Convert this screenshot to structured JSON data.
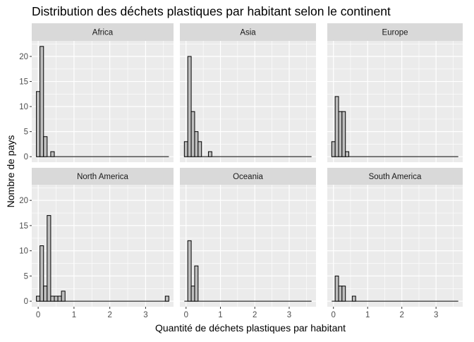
{
  "chart_data": {
    "type": "histogram",
    "title": "Distribution des déchets plastiques par habitant selon le continent",
    "xlabel": "Quantité de déchets plastiques par habitant",
    "ylabel": "Nombre de pays",
    "x_ticks": [
      0,
      1,
      2,
      3
    ],
    "y_ticks": [
      0,
      5,
      10,
      15,
      20
    ],
    "xlim": [
      -0.18,
      3.78
    ],
    "ylim": [
      -1.1,
      23.1
    ],
    "bin_width": 0.1,
    "grid": true,
    "colors": {
      "panel_bg": "#ebebeb",
      "strip_bg": "#d9d9d9",
      "bar_fill": "#bebebe",
      "bar_stroke": "#000000",
      "grid_major": "#ffffff",
      "text": "#000000",
      "axis_text": "#4d4d4d"
    },
    "panels": [
      {
        "label": "Africa",
        "bins": [
          {
            "x": 0.0,
            "count": 13
          },
          {
            "x": 0.1,
            "count": 22
          },
          {
            "x": 0.2,
            "count": 4
          },
          {
            "x": 0.4,
            "count": 1
          }
        ]
      },
      {
        "label": "Asia",
        "bins": [
          {
            "x": 0.0,
            "count": 3
          },
          {
            "x": 0.1,
            "count": 20
          },
          {
            "x": 0.2,
            "count": 9
          },
          {
            "x": 0.3,
            "count": 5
          },
          {
            "x": 0.4,
            "count": 3
          },
          {
            "x": 0.7,
            "count": 1
          }
        ]
      },
      {
        "label": "Europe",
        "bins": [
          {
            "x": 0.0,
            "count": 3
          },
          {
            "x": 0.1,
            "count": 12
          },
          {
            "x": 0.2,
            "count": 9
          },
          {
            "x": 0.3,
            "count": 9
          },
          {
            "x": 0.4,
            "count": 1
          }
        ]
      },
      {
        "label": "North America",
        "bins": [
          {
            "x": 0.0,
            "count": 1
          },
          {
            "x": 0.1,
            "count": 11
          },
          {
            "x": 0.2,
            "count": 3
          },
          {
            "x": 0.3,
            "count": 17
          },
          {
            "x": 0.4,
            "count": 1
          },
          {
            "x": 0.5,
            "count": 1
          },
          {
            "x": 0.6,
            "count": 1
          },
          {
            "x": 0.7,
            "count": 2
          },
          {
            "x": 3.6,
            "count": 1
          }
        ]
      },
      {
        "label": "Oceania",
        "bins": [
          {
            "x": 0.1,
            "count": 12
          },
          {
            "x": 0.2,
            "count": 3
          },
          {
            "x": 0.3,
            "count": 7
          }
        ]
      },
      {
        "label": "South America",
        "bins": [
          {
            "x": 0.1,
            "count": 5
          },
          {
            "x": 0.2,
            "count": 3
          },
          {
            "x": 0.3,
            "count": 3
          },
          {
            "x": 0.6,
            "count": 1
          }
        ]
      }
    ]
  }
}
